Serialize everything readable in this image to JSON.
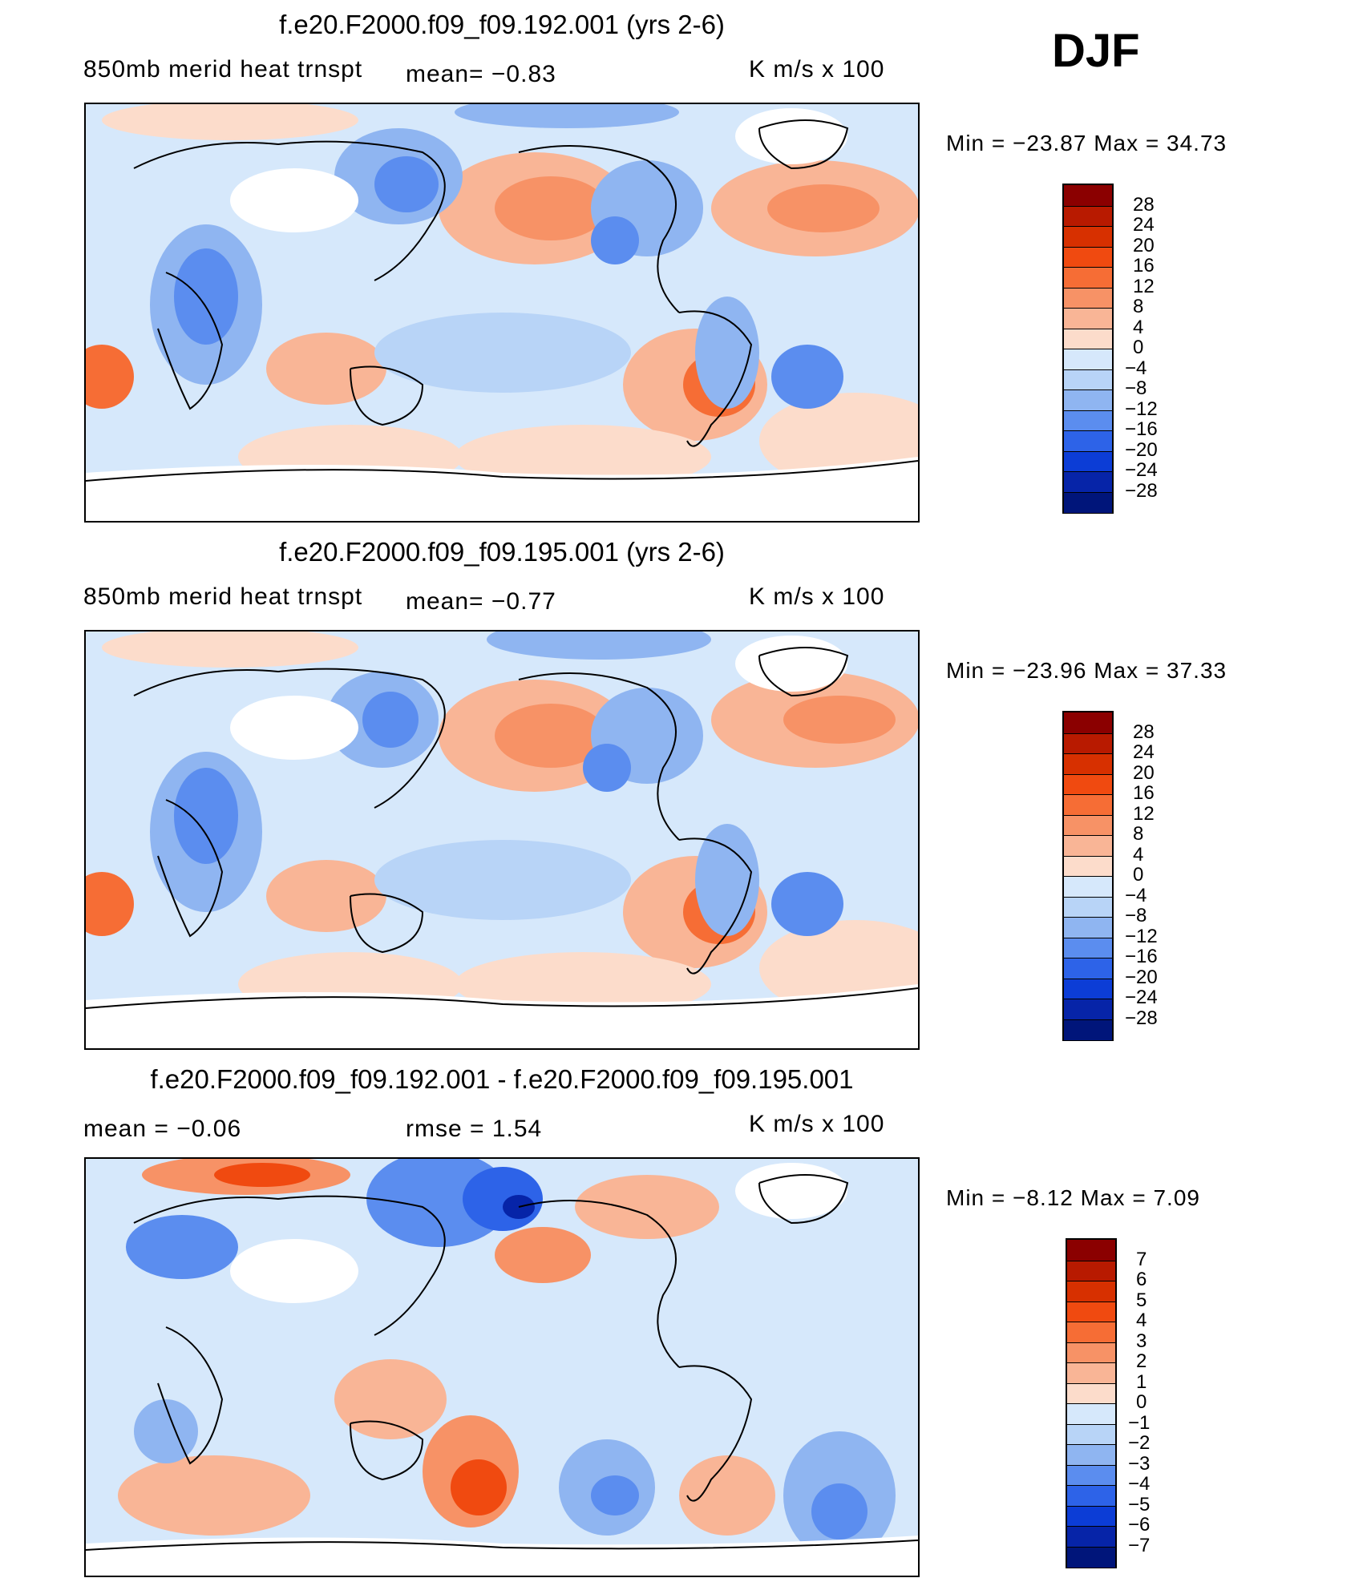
{
  "season": "DJF",
  "panels": [
    {
      "title": "f.e20.F2000.f09_f09.192.001 (yrs 2-6)",
      "left_label": "850mb merid heat trnspt",
      "mean_text": "mean=   −0.83",
      "right_label": "K m/s x 100",
      "minmax": "Min = −23.87 Max =   34.73",
      "colorbar": {
        "labels": [
          "28",
          "24",
          "20",
          "16",
          "12",
          "8",
          "4",
          "0",
          "−4",
          "−8",
          "−12",
          "−16",
          "−20",
          "−24",
          "−28"
        ],
        "colors": [
          "#8b0000",
          "#b81a00",
          "#d73000",
          "#f04a10",
          "#f66d35",
          "#f79266",
          "#f9b596",
          "#fcdccb",
          "#d6e8fb",
          "#b8d4f7",
          "#8fb5f1",
          "#5b8def",
          "#2d63e8",
          "#0c3dd6",
          "#0624a8",
          "#00157a"
        ]
      }
    },
    {
      "title": "f.e20.F2000.f09_f09.195.001 (yrs 2-6)",
      "left_label": "850mb merid heat trnspt",
      "mean_text": "mean=   −0.77",
      "right_label": "K m/s x 100",
      "minmax": "Min = −23.96 Max =   37.33",
      "colorbar": {
        "labels": [
          "28",
          "24",
          "20",
          "16",
          "12",
          "8",
          "4",
          "0",
          "−4",
          "−8",
          "−12",
          "−16",
          "−20",
          "−24",
          "−28"
        ],
        "colors": [
          "#8b0000",
          "#b81a00",
          "#d73000",
          "#f04a10",
          "#f66d35",
          "#f79266",
          "#f9b596",
          "#fcdccb",
          "#d6e8fb",
          "#b8d4f7",
          "#8fb5f1",
          "#5b8def",
          "#2d63e8",
          "#0c3dd6",
          "#0624a8",
          "#00157a"
        ]
      }
    },
    {
      "title": "f.e20.F2000.f09_f09.192.001 - f.e20.F2000.f09_f09.195.001",
      "left_label": "mean =   −0.06",
      "mean_text": "rmse =    1.54",
      "right_label": "K m/s x 100",
      "minmax": "Min =  −8.12 Max =    7.09",
      "colorbar": {
        "labels": [
          "7",
          "6",
          "5",
          "4",
          "3",
          "2",
          "1",
          "0",
          "−1",
          "−2",
          "−3",
          "−4",
          "−5",
          "−6",
          "−7"
        ],
        "colors": [
          "#8b0000",
          "#b81a00",
          "#d73000",
          "#f04a10",
          "#f66d35",
          "#f79266",
          "#f9b596",
          "#fcdccb",
          "#d6e8fb",
          "#b8d4f7",
          "#8fb5f1",
          "#5b8def",
          "#2d63e8",
          "#0c3dd6",
          "#0624a8",
          "#00157a"
        ]
      }
    }
  ],
  "chart_data": [
    {
      "type": "heatmap",
      "title": "f.e20.F2000.f09_f09.192.001 (yrs 2-6)",
      "variable": "850mb merid heat trnspt",
      "units": "K m/s x 100",
      "mean": -0.83,
      "min": -23.87,
      "max": 34.73,
      "contour_levels": [
        -28,
        -24,
        -20,
        -16,
        -12,
        -8,
        -4,
        0,
        4,
        8,
        12,
        16,
        20,
        24,
        28
      ],
      "season": "DJF"
    },
    {
      "type": "heatmap",
      "title": "f.e20.F2000.f09_f09.195.001 (yrs 2-6)",
      "variable": "850mb merid heat trnspt",
      "units": "K m/s x 100",
      "mean": -0.77,
      "min": -23.96,
      "max": 37.33,
      "contour_levels": [
        -28,
        -24,
        -20,
        -16,
        -12,
        -8,
        -4,
        0,
        4,
        8,
        12,
        16,
        20,
        24,
        28
      ],
      "season": "DJF"
    },
    {
      "type": "heatmap",
      "title": "f.e20.F2000.f09_f09.192.001 - f.e20.F2000.f09_f09.195.001",
      "units": "K m/s x 100",
      "mean": -0.06,
      "rmse": 1.54,
      "min": -8.12,
      "max": 7.09,
      "contour_levels": [
        -7,
        -6,
        -5,
        -4,
        -3,
        -2,
        -1,
        0,
        1,
        2,
        3,
        4,
        5,
        6,
        7
      ],
      "season": "DJF"
    }
  ]
}
